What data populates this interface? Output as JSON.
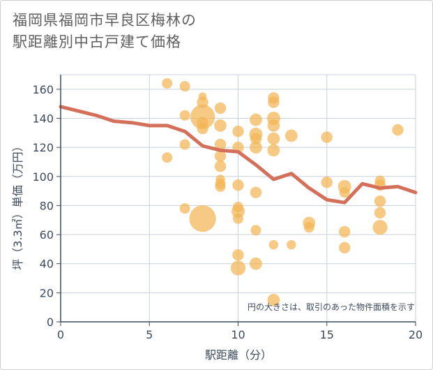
{
  "chart_data": {
    "type": "scatter",
    "title_lines": [
      "福岡県福岡市早良区梅林の",
      "駅距離別中古戸建て価格"
    ],
    "xlabel": "駅距離（分）",
    "ylabel": "坪（3.3㎡）単価（万円）",
    "xlim": [
      0,
      20
    ],
    "ylim": [
      0,
      170
    ],
    "x_ticks": [
      0,
      5,
      10,
      15,
      20
    ],
    "y_ticks": [
      0,
      20,
      40,
      60,
      80,
      100,
      120,
      140,
      160
    ],
    "grid": true,
    "note": "円の大きさは、取引のあった物件面積を示す",
    "colors": {
      "bubble": "#f3b554",
      "line": "#d4705a",
      "grid": "#c8d0dc",
      "axis": "#3d4a5c"
    },
    "points": [
      {
        "x": 6,
        "y": 164,
        "size": 1
      },
      {
        "x": 7,
        "y": 162,
        "size": 1
      },
      {
        "x": 6,
        "y": 113,
        "size": 1
      },
      {
        "x": 7,
        "y": 142,
        "size": 1
      },
      {
        "x": 7,
        "y": 122,
        "size": 1
      },
      {
        "x": 7,
        "y": 78,
        "size": 1
      },
      {
        "x": 8,
        "y": 155,
        "size": 0.6
      },
      {
        "x": 8,
        "y": 151,
        "size": 1.2
      },
      {
        "x": 8,
        "y": 141,
        "size": 5.5
      },
      {
        "x": 8,
        "y": 137,
        "size": 1.2
      },
      {
        "x": 8,
        "y": 133,
        "size": 1.2
      },
      {
        "x": 8,
        "y": 71,
        "size": 6.5
      },
      {
        "x": 9,
        "y": 147,
        "size": 1.2
      },
      {
        "x": 9,
        "y": 135,
        "size": 1.4
      },
      {
        "x": 9,
        "y": 122,
        "size": 1.2
      },
      {
        "x": 9,
        "y": 114,
        "size": 1.2
      },
      {
        "x": 9,
        "y": 107,
        "size": 1.2
      },
      {
        "x": 9,
        "y": 98,
        "size": 0.8
      },
      {
        "x": 9,
        "y": 95,
        "size": 1
      },
      {
        "x": 9,
        "y": 93,
        "size": 1
      },
      {
        "x": 10,
        "y": 131,
        "size": 1.2
      },
      {
        "x": 10,
        "y": 120,
        "size": 1.2
      },
      {
        "x": 10,
        "y": 94,
        "size": 1.2
      },
      {
        "x": 10,
        "y": 79,
        "size": 1
      },
      {
        "x": 10,
        "y": 76,
        "size": 1.6
      },
      {
        "x": 10,
        "y": 71,
        "size": 1
      },
      {
        "x": 10,
        "y": 46,
        "size": 1.2
      },
      {
        "x": 10,
        "y": 37,
        "size": 2
      },
      {
        "x": 11,
        "y": 139,
        "size": 1.4
      },
      {
        "x": 11,
        "y": 129,
        "size": 1.6
      },
      {
        "x": 11,
        "y": 126,
        "size": 1.2
      },
      {
        "x": 11,
        "y": 120,
        "size": 1.4
      },
      {
        "x": 11,
        "y": 89,
        "size": 1.2
      },
      {
        "x": 11,
        "y": 63,
        "size": 1
      },
      {
        "x": 11,
        "y": 40,
        "size": 1.4
      },
      {
        "x": 12,
        "y": 154,
        "size": 1.2
      },
      {
        "x": 12,
        "y": 151,
        "size": 1.2
      },
      {
        "x": 12,
        "y": 140,
        "size": 1.6
      },
      {
        "x": 12,
        "y": 135,
        "size": 1.4
      },
      {
        "x": 12,
        "y": 126,
        "size": 1.4
      },
      {
        "x": 12,
        "y": 118,
        "size": 1.4
      },
      {
        "x": 12,
        "y": 53,
        "size": 0.8
      },
      {
        "x": 12,
        "y": 15,
        "size": 1.4
      },
      {
        "x": 13,
        "y": 128,
        "size": 1.4
      },
      {
        "x": 13,
        "y": 53,
        "size": 0.8
      },
      {
        "x": 14,
        "y": 68,
        "size": 1.4
      },
      {
        "x": 14,
        "y": 65,
        "size": 1
      },
      {
        "x": 15,
        "y": 127,
        "size": 1.2
      },
      {
        "x": 15,
        "y": 96,
        "size": 1.2
      },
      {
        "x": 16,
        "y": 93,
        "size": 1.6
      },
      {
        "x": 16,
        "y": 89,
        "size": 1
      },
      {
        "x": 16,
        "y": 62,
        "size": 1.2
      },
      {
        "x": 16,
        "y": 51,
        "size": 1.2
      },
      {
        "x": 18,
        "y": 97,
        "size": 1
      },
      {
        "x": 18,
        "y": 94,
        "size": 1.2
      },
      {
        "x": 18,
        "y": 83,
        "size": 1.2
      },
      {
        "x": 18,
        "y": 75,
        "size": 1.2
      },
      {
        "x": 18,
        "y": 65,
        "size": 2
      },
      {
        "x": 19,
        "y": 132,
        "size": 1.2
      }
    ],
    "trend_line": [
      {
        "x": 0,
        "y": 148
      },
      {
        "x": 1,
        "y": 145
      },
      {
        "x": 2,
        "y": 142
      },
      {
        "x": 3,
        "y": 138
      },
      {
        "x": 4,
        "y": 137
      },
      {
        "x": 5,
        "y": 135
      },
      {
        "x": 6,
        "y": 135
      },
      {
        "x": 7,
        "y": 131
      },
      {
        "x": 8,
        "y": 121
      },
      {
        "x": 9,
        "y": 118
      },
      {
        "x": 10,
        "y": 117
      },
      {
        "x": 11,
        "y": 108
      },
      {
        "x": 12,
        "y": 98
      },
      {
        "x": 13,
        "y": 102
      },
      {
        "x": 14,
        "y": 92
      },
      {
        "x": 15,
        "y": 84
      },
      {
        "x": 16,
        "y": 82
      },
      {
        "x": 17,
        "y": 95
      },
      {
        "x": 18,
        "y": 92
      },
      {
        "x": 19,
        "y": 93
      },
      {
        "x": 20,
        "y": 89
      }
    ]
  }
}
